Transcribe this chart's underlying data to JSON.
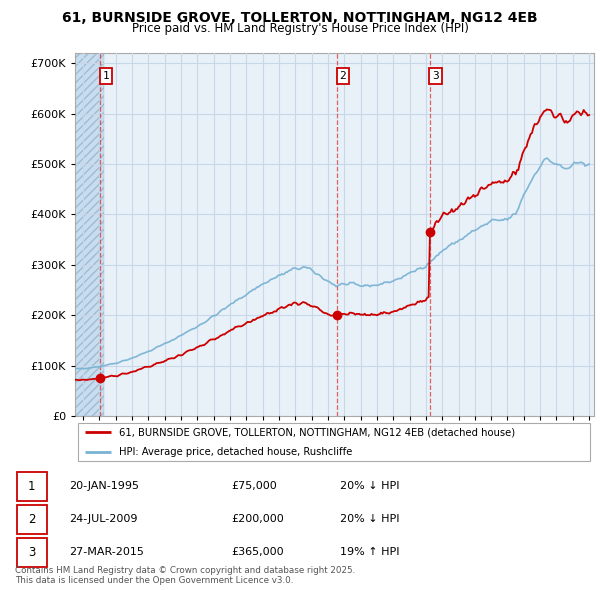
{
  "title": "61, BURNSIDE GROVE, TOLLERTON, NOTTINGHAM, NG12 4EB",
  "subtitle": "Price paid vs. HM Land Registry's House Price Index (HPI)",
  "legend_line1": "61, BURNSIDE GROVE, TOLLERTON, NOTTINGHAM, NG12 4EB (detached house)",
  "legend_line2": "HPI: Average price, detached house, Rushcliffe",
  "footer": "Contains HM Land Registry data © Crown copyright and database right 2025.\nThis data is licensed under the Open Government Licence v3.0.",
  "sales": [
    {
      "num": 1,
      "date_x": 1995.055,
      "price": 75000,
      "label": "20-JAN-1995",
      "price_label": "£75,000",
      "hpi_label": "20% ↓ HPI"
    },
    {
      "num": 2,
      "date_x": 2009.555,
      "price": 200000,
      "label": "24-JUL-2009",
      "price_label": "£200,000",
      "hpi_label": "20% ↓ HPI"
    },
    {
      "num": 3,
      "date_x": 2015.23,
      "price": 365000,
      "label": "27-MAR-2015",
      "price_label": "£365,000",
      "hpi_label": "19% ↑ HPI"
    }
  ],
  "hpi_color": "#7ab3d4",
  "price_color": "#cc0000",
  "ylim": [
    0,
    720000
  ],
  "yticks": [
    0,
    100000,
    200000,
    300000,
    400000,
    500000,
    600000,
    700000
  ],
  "xmin": 1993.5,
  "xmax": 2025.3,
  "hatch_color": "#c8ddf0",
  "grid_color": "#c8d8e8",
  "bg_color": "#e8f0f8"
}
